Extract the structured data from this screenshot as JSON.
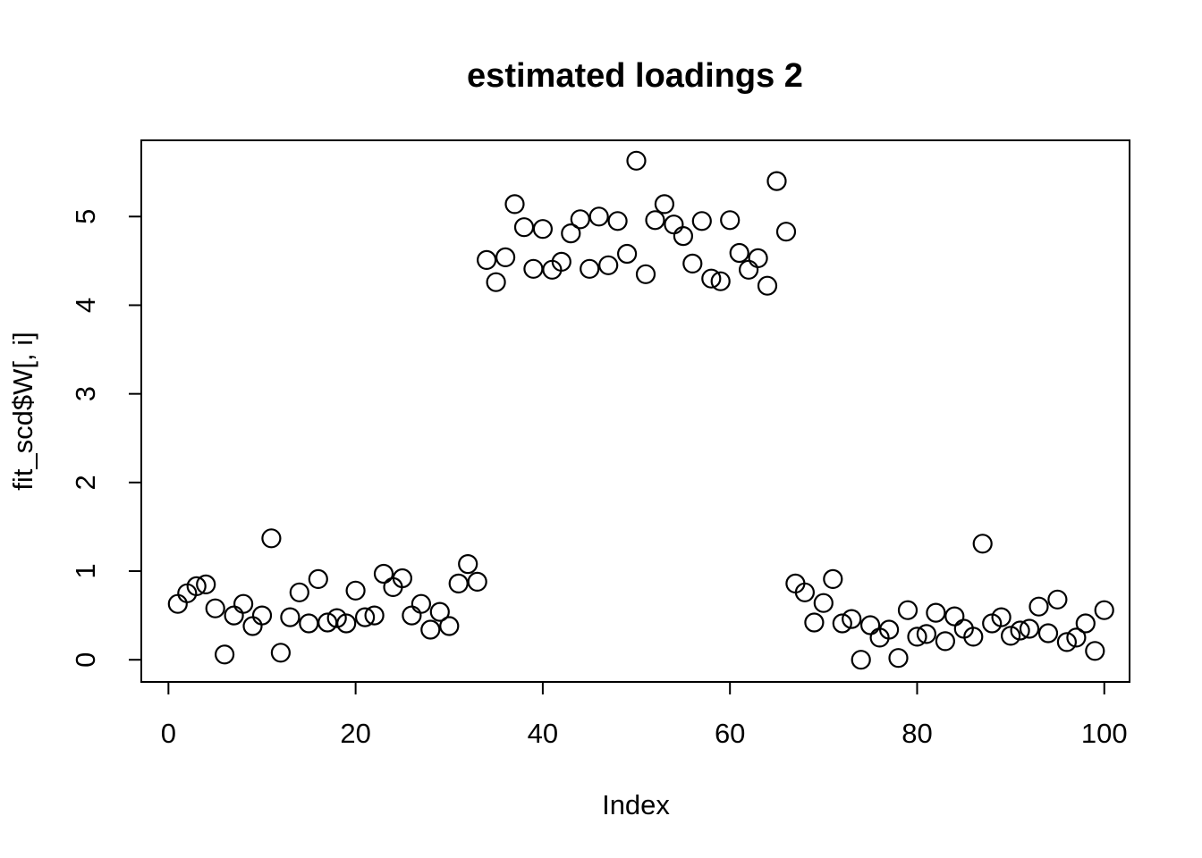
{
  "chart_data": {
    "type": "scatter",
    "title": "estimated loadings 2",
    "xlabel": "Index",
    "ylabel": "fit_scd$W[, i]",
    "marker": "open-circle",
    "marker_color": "#000000",
    "background": "#ffffff",
    "grid": false,
    "legend": null,
    "x_ticks": [
      0,
      20,
      40,
      60,
      80,
      100
    ],
    "y_ticks": [
      0,
      1,
      2,
      3,
      4,
      5
    ],
    "xlim": [
      -2.9,
      102.7
    ],
    "ylim": [
      -0.25,
      5.86
    ],
    "x": [
      1,
      2,
      3,
      4,
      5,
      6,
      7,
      8,
      9,
      10,
      11,
      12,
      13,
      14,
      15,
      16,
      17,
      18,
      19,
      20,
      21,
      22,
      23,
      24,
      25,
      26,
      27,
      28,
      29,
      30,
      31,
      32,
      33,
      34,
      35,
      36,
      37,
      38,
      39,
      40,
      41,
      42,
      43,
      44,
      45,
      46,
      47,
      48,
      49,
      50,
      51,
      52,
      53,
      54,
      55,
      56,
      57,
      58,
      59,
      60,
      61,
      62,
      63,
      64,
      65,
      66,
      67,
      68,
      69,
      70,
      71,
      72,
      73,
      74,
      75,
      76,
      77,
      78,
      79,
      80,
      81,
      82,
      83,
      84,
      85,
      86,
      87,
      88,
      89,
      90,
      91,
      92,
      93,
      94,
      95,
      96,
      97,
      98,
      99,
      100
    ],
    "y": [
      0.63,
      0.75,
      0.83,
      0.85,
      0.58,
      0.06,
      0.5,
      0.63,
      0.38,
      0.5,
      1.37,
      0.08,
      0.48,
      0.76,
      0.41,
      0.91,
      0.42,
      0.47,
      0.41,
      0.78,
      0.48,
      0.5,
      0.97,
      0.82,
      0.92,
      0.5,
      0.63,
      0.34,
      0.54,
      0.38,
      0.86,
      1.08,
      0.88,
      4.51,
      4.26,
      4.54,
      5.14,
      4.88,
      4.41,
      4.86,
      4.4,
      4.49,
      4.81,
      4.97,
      4.41,
      5.0,
      4.45,
      4.95,
      4.58,
      5.63,
      4.35,
      4.96,
      5.14,
      4.91,
      4.78,
      4.47,
      4.95,
      4.3,
      4.27,
      4.96,
      4.59,
      4.4,
      4.53,
      4.22,
      5.4,
      4.83,
      0.86,
      0.76,
      0.42,
      0.64,
      0.91,
      0.41,
      0.46,
      0.0,
      0.39,
      0.25,
      0.34,
      0.02,
      0.56,
      0.26,
      0.29,
      0.53,
      0.21,
      0.49,
      0.35,
      0.26,
      1.31,
      0.41,
      0.48,
      0.27,
      0.33,
      0.35,
      0.6,
      0.3,
      0.68,
      0.2,
      0.25,
      0.41,
      0.1,
      0.56
    ]
  }
}
